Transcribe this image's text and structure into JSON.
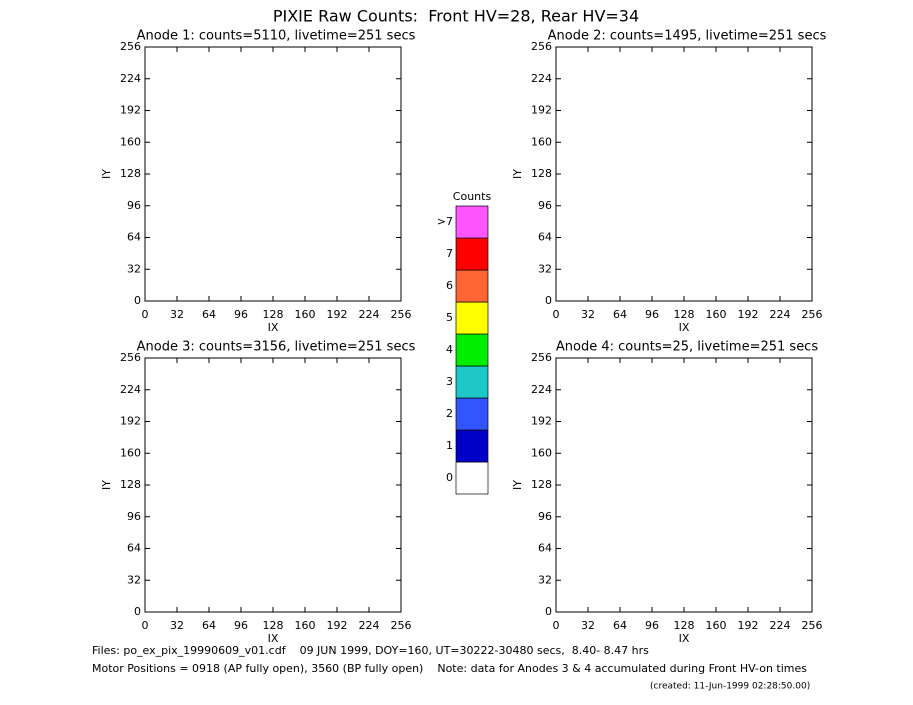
{
  "title": "PIXIE Raw Counts:  Front HV=28, Rear HV=34",
  "chart_data": [
    {
      "type": "pixelmap",
      "title": "Anode 1: counts=5110, livetime=251 secs",
      "xlabel": "IX",
      "ylabel": "IY",
      "xlim": [
        0,
        256
      ],
      "ylim": [
        0,
        256
      ],
      "xticks": [
        0,
        32,
        64,
        96,
        128,
        160,
        192,
        224,
        256
      ],
      "yticks": [
        0,
        32,
        64,
        96,
        128,
        160,
        192,
        224,
        256
      ]
    },
    {
      "type": "pixelmap",
      "title": "Anode 2: counts=1495, livetime=251 secs",
      "xlabel": "IX",
      "ylabel": "IY",
      "xlim": [
        0,
        256
      ],
      "ylim": [
        0,
        256
      ],
      "xticks": [
        0,
        32,
        64,
        96,
        128,
        160,
        192,
        224,
        256
      ],
      "yticks": [
        0,
        32,
        64,
        96,
        128,
        160,
        192,
        224,
        256
      ]
    },
    {
      "type": "pixelmap",
      "title": "Anode 3: counts=3156, livetime=251 secs",
      "xlabel": "IX",
      "ylabel": "IY",
      "xlim": [
        0,
        256
      ],
      "ylim": [
        0,
        256
      ],
      "xticks": [
        0,
        32,
        64,
        96,
        128,
        160,
        192,
        224,
        256
      ],
      "yticks": [
        0,
        32,
        64,
        96,
        128,
        160,
        192,
        224,
        256
      ]
    },
    {
      "type": "pixelmap",
      "title": "Anode 4: counts=25, livetime=251 secs",
      "xlabel": "IX",
      "ylabel": "IY",
      "xlim": [
        0,
        256
      ],
      "ylim": [
        0,
        256
      ],
      "xticks": [
        0,
        32,
        64,
        96,
        128,
        160,
        192,
        224,
        256
      ],
      "yticks": [
        0,
        32,
        64,
        96,
        128,
        160,
        192,
        224,
        256
      ]
    }
  ],
  "colorbar": {
    "title": "Counts",
    "levels": [
      0,
      1,
      2,
      3,
      4,
      5,
      6,
      7,
      {
        "value": 8,
        "label": ">7"
      }
    ],
    "colors": [
      "#ffffff",
      "#0000c8",
      "#3355ff",
      "#1ec8c8",
      "#00ee00",
      "#ffff00",
      "#ff6633",
      "#ff0000",
      "#ff55ff"
    ]
  },
  "footer": {
    "files": "Files: po_ex_pix_19990609_v01.cdf    09 JUN 1999, DOY=160, UT=30222-30480 secs,  8.40- 8.47 hrs",
    "motor": "Motor Positions = 0918 (AP fully open), 3560 (BP fully open)    Note: data for Anodes 3 & 4 accumulated during Front HV-on times",
    "created": "(created: 11-Jun-1999 02:28:50.00)"
  }
}
